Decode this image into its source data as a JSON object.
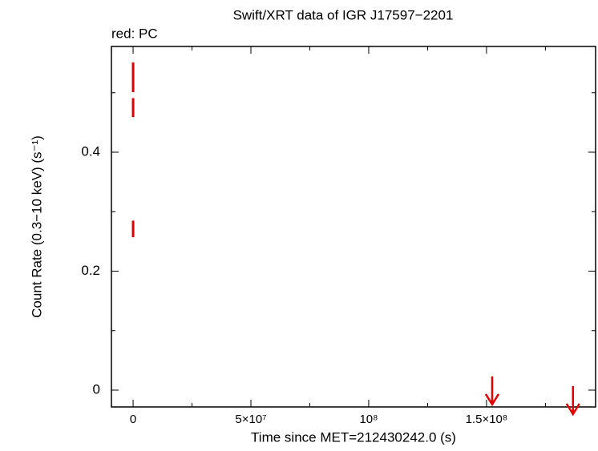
{
  "chart_data": {
    "type": "errorbar",
    "title": "Swift/XRT data of  IGR J17597−2201",
    "subtitle": "red: PC",
    "x_label": "Time since MET=212430242.0 (s)",
    "y_label": "Count Rate (0.3−10 keV) (s⁻¹)",
    "xlim": [
      -9200000,
      196300000
    ],
    "ylim": [
      -0.0283,
      0.5778
    ],
    "xticks": [
      0,
      {
        "value": 50000000,
        "label": "5×10⁷"
      },
      {
        "value": 100000000,
        "label": "10⁸"
      },
      {
        "value": 150000000,
        "label": "1.5×10⁸"
      }
    ],
    "xminor": [
      25000000,
      75000000,
      125000000,
      175000000
    ],
    "yticks": [
      0,
      0.2,
      0.4
    ],
    "yminor": [
      0.1,
      0.3,
      0.5
    ],
    "series": [
      {
        "color": "#e00000",
        "x": [
          0,
          0,
          0
        ],
        "values": [
          0.526,
          0.475,
          0.271
        ],
        "errors": [
          0.025,
          0.016,
          0.014
        ]
      }
    ],
    "upper_limits": {
      "color": "#e00000",
      "x": [
        152400000,
        186700000
      ],
      "values": [
        0.023,
        0.0067
      ]
    }
  }
}
